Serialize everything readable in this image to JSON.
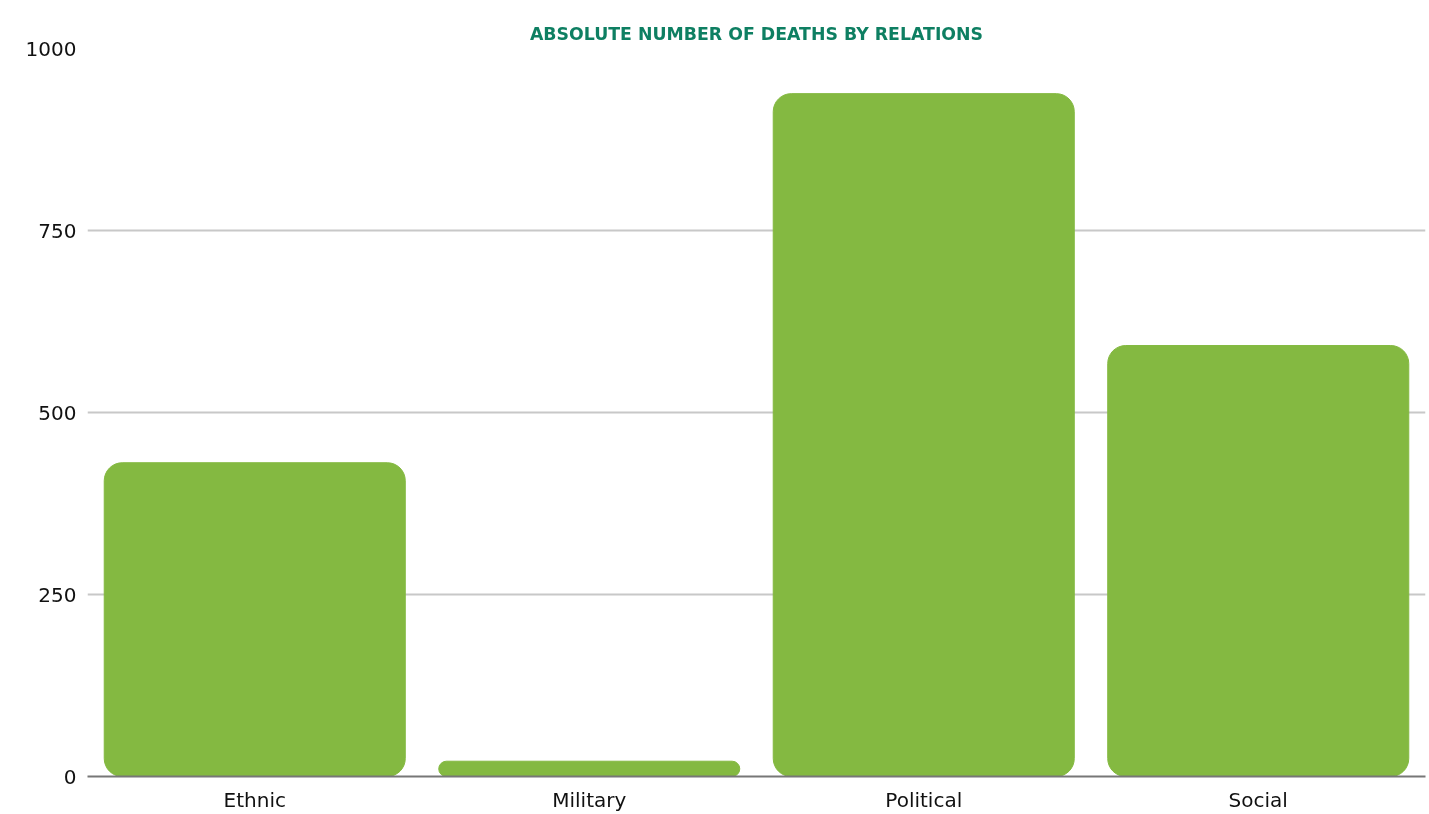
{
  "chart_data": {
    "type": "bar",
    "title": "ABSOLUTE NUMBER OF DEATHS BY RELATIONS",
    "categories": [
      "Ethnic",
      "Military",
      "Political",
      "Social"
    ],
    "values": [
      431,
      21,
      938,
      592
    ],
    "color": "#84b941",
    "ylim": [
      0,
      1000
    ],
    "yticks": [
      0,
      250,
      500,
      750,
      1000
    ],
    "grid": "y"
  }
}
